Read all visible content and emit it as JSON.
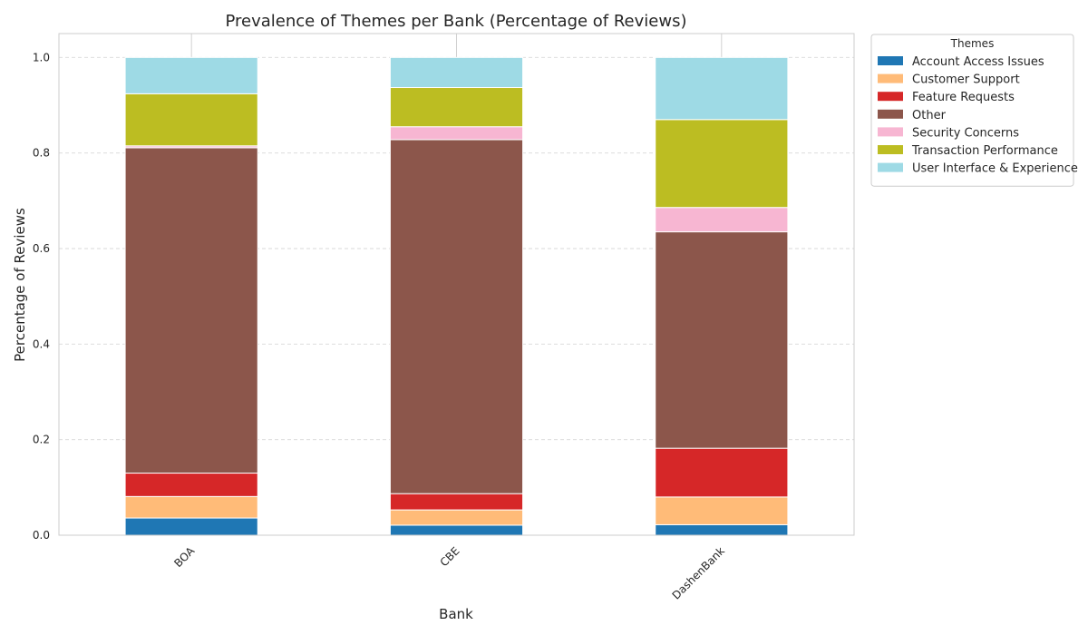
{
  "chart_data": {
    "type": "bar",
    "stacked": true,
    "title": "Prevalence of Themes per Bank (Percentage of Reviews)",
    "xlabel": "Bank",
    "ylabel": "Percentage of Reviews",
    "ylim": [
      0,
      1.05
    ],
    "yticks": [
      "0.0",
      "0.2",
      "0.4",
      "0.6",
      "0.8",
      "1.0"
    ],
    "grid": true,
    "legend_placement": "outside-top-right",
    "legend_title": "Themes",
    "categories": [
      "BOA",
      "CBE",
      "DashenBank"
    ],
    "series": [
      {
        "name": "Account Access Issues",
        "color": "#1f77b4",
        "values": [
          0.036,
          0.021,
          0.022
        ]
      },
      {
        "name": "Customer Support",
        "color": "#ffbb78",
        "values": [
          0.045,
          0.032,
          0.058
        ]
      },
      {
        "name": "Feature Requests",
        "color": "#d62728",
        "values": [
          0.049,
          0.034,
          0.102
        ]
      },
      {
        "name": "Other",
        "color": "#8c564b",
        "values": [
          0.681,
          0.741,
          0.453
        ]
      },
      {
        "name": "Security Concerns",
        "color": "#f7b6d2",
        "values": [
          0.004,
          0.027,
          0.051
        ]
      },
      {
        "name": "Transaction Performance",
        "color": "#bcbd22",
        "values": [
          0.109,
          0.082,
          0.184
        ]
      },
      {
        "name": "User Interface & Experience",
        "color": "#9edae5",
        "values": [
          0.076,
          0.063,
          0.13
        ]
      }
    ]
  }
}
